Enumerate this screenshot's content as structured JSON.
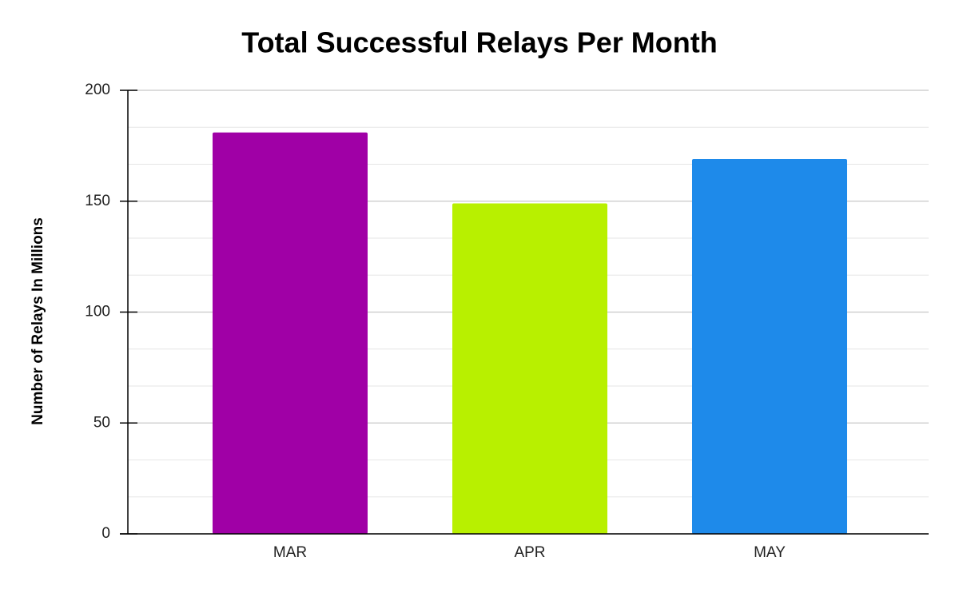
{
  "chart_data": {
    "type": "bar",
    "title": "Total Successful Relays Per Month",
    "y_label": "Number of Relays In Millions",
    "categories": [
      "MAR",
      "APR",
      "MAY"
    ],
    "values": [
      181,
      149,
      169
    ],
    "colors": [
      "#a000a6",
      "#b8f000",
      "#1e8aea"
    ],
    "ylim": [
      0,
      200
    ],
    "yticks": [
      0,
      50,
      100,
      150,
      200
    ],
    "grid": true,
    "minor_grid_divisions": 3
  }
}
